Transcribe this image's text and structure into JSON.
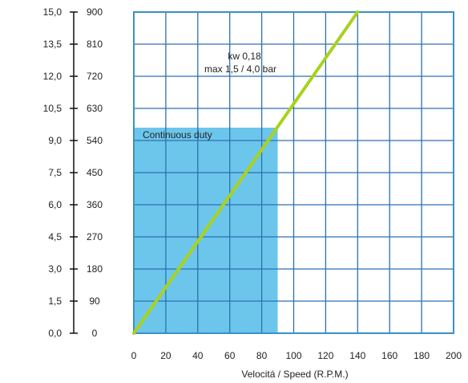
{
  "chart_data": {
    "type": "line",
    "title": "",
    "xlabel": "Velocitá / Speed (R.P.M.)",
    "x_ticks": [
      "0",
      "20",
      "40",
      "60",
      "80",
      "100",
      "120",
      "140",
      "160",
      "180",
      "200"
    ],
    "xlim": [
      0,
      200
    ],
    "left_axis_ticks": [
      "0,0",
      "1,5",
      "3,0",
      "4,5",
      "6,0",
      "7,5",
      "9,0",
      "10,5",
      "12,0",
      "13,5",
      "15,0"
    ],
    "left_axis_lim": [
      0,
      15
    ],
    "right_axis_ticks": [
      "0",
      "90",
      "180",
      "270",
      "360",
      "450",
      "540",
      "630",
      "720",
      "810",
      "900"
    ],
    "right_axis_lim": [
      0,
      900
    ],
    "grid": true,
    "regions": [
      {
        "label": "Continuous duty",
        "x": [
          0,
          90
        ],
        "y_left": [
          0,
          9.6
        ],
        "color": "#6cc6ec"
      }
    ],
    "series": [
      {
        "x": [
          0,
          140
        ],
        "y_left": [
          0,
          15
        ],
        "color": "#a8d21e",
        "annotation": [
          "kw 0,18",
          "max 1,5 / 4,0 bar"
        ]
      }
    ],
    "colors": {
      "frame": "#3a90c8",
      "grid": "#2f6fb2",
      "region": "#6cc6ec",
      "line": "#a8d21e"
    }
  }
}
